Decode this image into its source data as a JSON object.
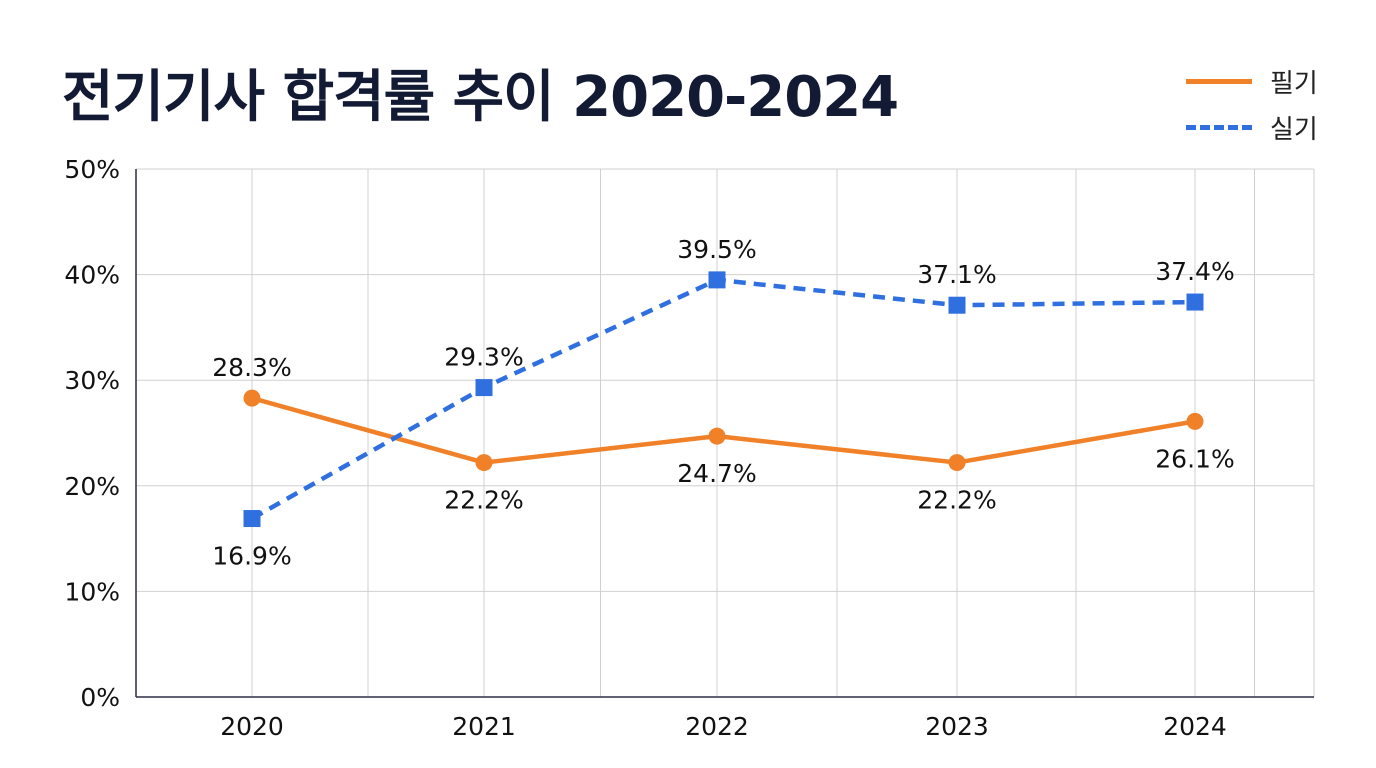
{
  "title": "전기기사 합격률 추이 2020-2024",
  "legend": {
    "written": "필기",
    "practical": "실기"
  },
  "colors": {
    "written": "#f08129",
    "practical": "#2f6fe0",
    "title": "#131a33",
    "grid": "#d0d0d0",
    "axis": "#2b2f45"
  },
  "chart_data": {
    "type": "line",
    "title": "전기기사 합격률 추이 2020-2024",
    "categories": [
      "2020",
      "2021",
      "2022",
      "2023",
      "2024"
    ],
    "y_ticks": [
      "0%",
      "10%",
      "20%",
      "30%",
      "40%",
      "50%"
    ],
    "ylim": [
      0,
      50
    ],
    "series": [
      {
        "name": "필기",
        "values": [
          28.3,
          22.2,
          24.7,
          22.2,
          26.1
        ],
        "labels": [
          "28.3%",
          "22.2%",
          "24.7%",
          "22.2%",
          "26.1%"
        ],
        "style": "solid",
        "marker": "circle",
        "color": "#f08129"
      },
      {
        "name": "실기",
        "values": [
          16.9,
          29.3,
          39.5,
          37.1,
          37.4
        ],
        "labels": [
          "16.9%",
          "29.3%",
          "39.5%",
          "37.1%",
          "37.4%"
        ],
        "style": "dashed",
        "marker": "square",
        "color": "#2f6fe0"
      }
    ],
    "grid": true,
    "legend_position": "top-right"
  }
}
